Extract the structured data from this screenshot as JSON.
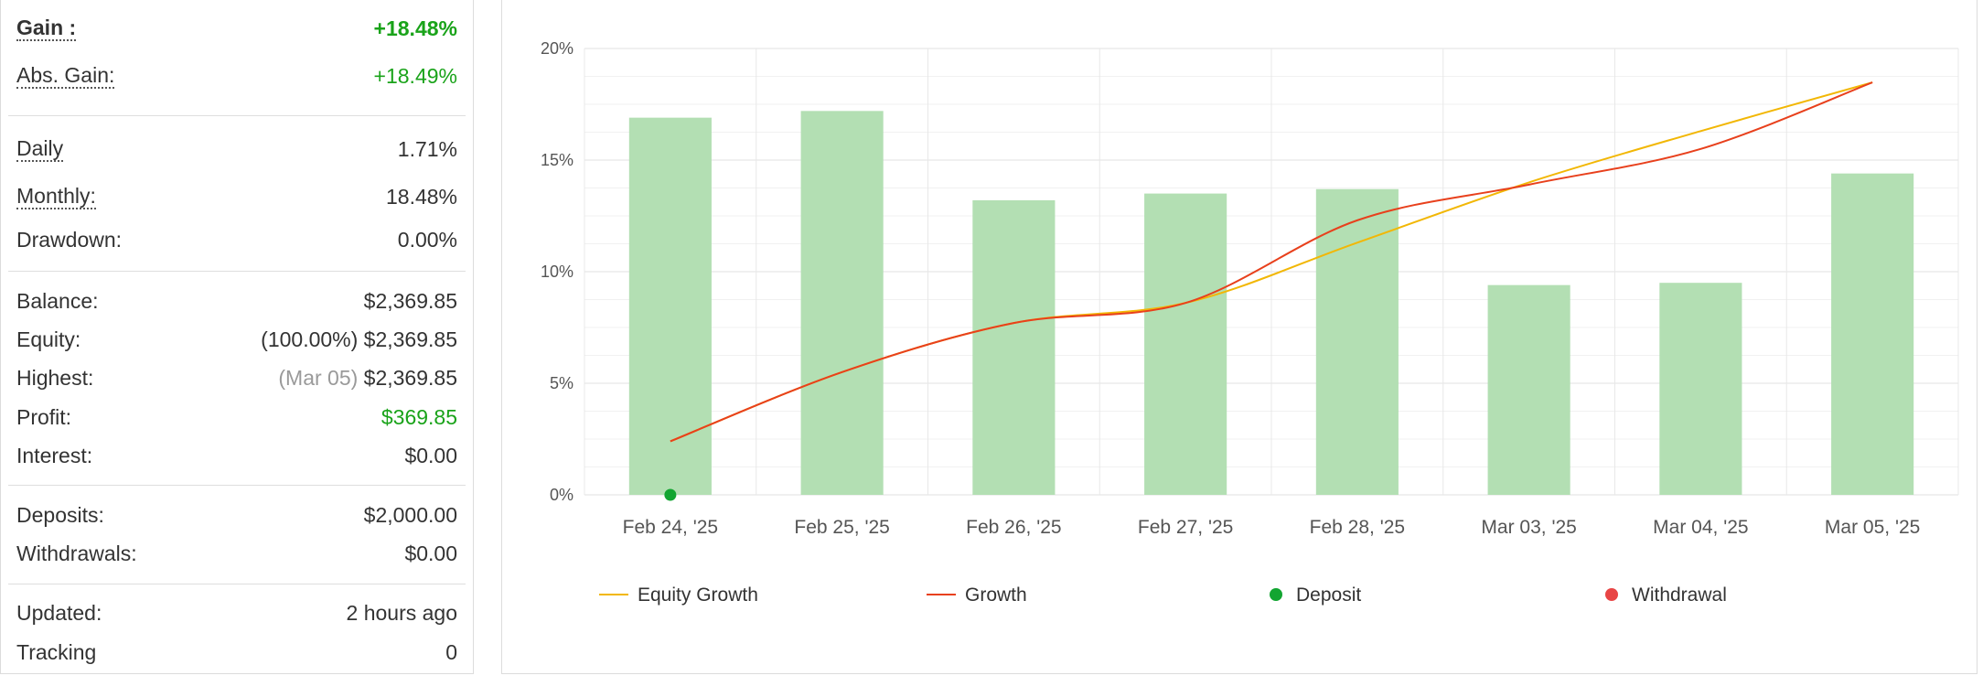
{
  "stats": {
    "gain": {
      "label": "Gain :",
      "value": "+18.48%"
    },
    "abs_gain": {
      "label": "Abs. Gain:",
      "value": "+18.49%"
    },
    "daily": {
      "label": "Daily",
      "value": "1.71%"
    },
    "monthly": {
      "label": "Monthly:",
      "value": "18.48%"
    },
    "drawdown": {
      "label": "Drawdown:",
      "value": "0.00%"
    },
    "balance": {
      "label": "Balance:",
      "value": "$2,369.85"
    },
    "equity": {
      "label": "Equity:",
      "note": "(100.00%)",
      "value": "$2,369.85"
    },
    "highest": {
      "label": "Highest:",
      "note": "(Mar 05)",
      "value": "$2,369.85"
    },
    "profit": {
      "label": "Profit:",
      "value": "$369.85"
    },
    "interest": {
      "label": "Interest:",
      "value": "$0.00"
    },
    "deposits": {
      "label": "Deposits:",
      "value": "$2,000.00"
    },
    "withdrawals": {
      "label": "Withdrawals:",
      "value": "$0.00"
    },
    "updated": {
      "label": "Updated:",
      "value": "2 hours ago"
    },
    "tracking": {
      "label": "Tracking",
      "value": "0"
    }
  },
  "colors": {
    "positive": "#1aa31a",
    "bar": "#b3dfb3",
    "equity_growth": "#f2b705",
    "growth": "#e8401c",
    "deposit": "#12a531",
    "withdrawal": "#e84545"
  },
  "chart_data": {
    "type": "bar",
    "categories": [
      "Feb 24, '25",
      "Feb 25, '25",
      "Feb 26, '25",
      "Feb 27, '25",
      "Feb 28, '25",
      "Mar 03, '25",
      "Mar 04, '25",
      "Mar 05, '25"
    ],
    "y_ticks": [
      "0%",
      "5%",
      "10%",
      "15%",
      "20%"
    ],
    "ylim": [
      0,
      20
    ],
    "grid": true,
    "legend_position": "bottom",
    "bars": [
      16.9,
      17.2,
      13.2,
      13.5,
      13.7,
      9.4,
      9.5,
      14.4
    ],
    "series": [
      {
        "name": "Equity Growth",
        "type": "line",
        "values": [
          2.4,
          5.5,
          7.7,
          8.6,
          11.3,
          14.0,
          16.3,
          18.48
        ]
      },
      {
        "name": "Growth",
        "type": "line",
        "values": [
          2.4,
          5.5,
          7.7,
          8.6,
          12.3,
          13.9,
          15.5,
          18.48
        ]
      },
      {
        "name": "Deposit",
        "type": "marker",
        "points": [
          {
            "category": "Feb 24, '25",
            "value": 0
          }
        ]
      },
      {
        "name": "Withdrawal",
        "type": "marker",
        "points": []
      }
    ]
  }
}
